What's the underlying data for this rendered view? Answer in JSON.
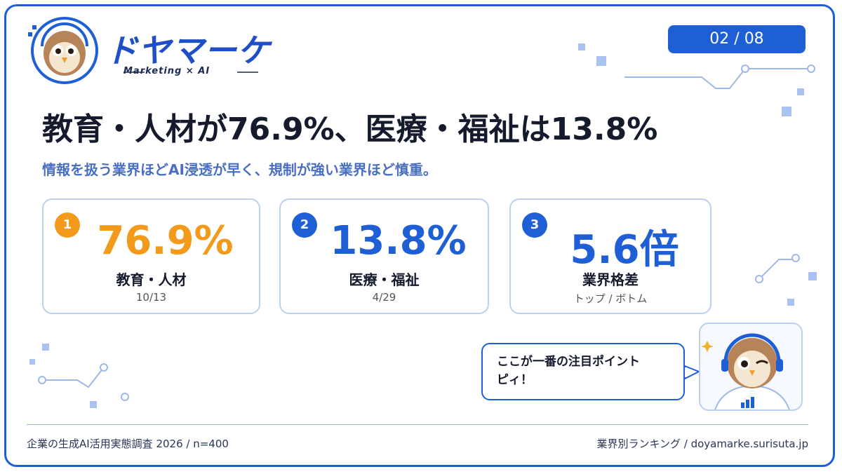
{
  "header": {
    "logo_title": "ドヤマーケ",
    "logo_subtitle": "Marketing × AI",
    "page_indicator": "02 / 08"
  },
  "title": "教育・人材が76.9%、医療・福祉は13.8%",
  "subtitle": "情報を扱う業界ほどAI浸透が早く、規制が強い業界ほど慎重。",
  "cards": [
    {
      "rank": "1",
      "value": "76.9%",
      "label": "教育・人材",
      "detail": "10/13"
    },
    {
      "rank": "2",
      "value": "13.8%",
      "label": "医療・福祉",
      "detail": "4/29"
    },
    {
      "rank": "3",
      "value": "5.6倍",
      "label": "業界格差",
      "detail": "トップ / ボトム"
    }
  ],
  "speech_bubble": [
    "ここが一番の注目ポイント",
    "ピィ！"
  ],
  "footer": {
    "left": "企業の生成AI活用実態調査  2026 / n=400",
    "right": "業界別ランキング / doyamarke.surisuta.jp"
  }
}
